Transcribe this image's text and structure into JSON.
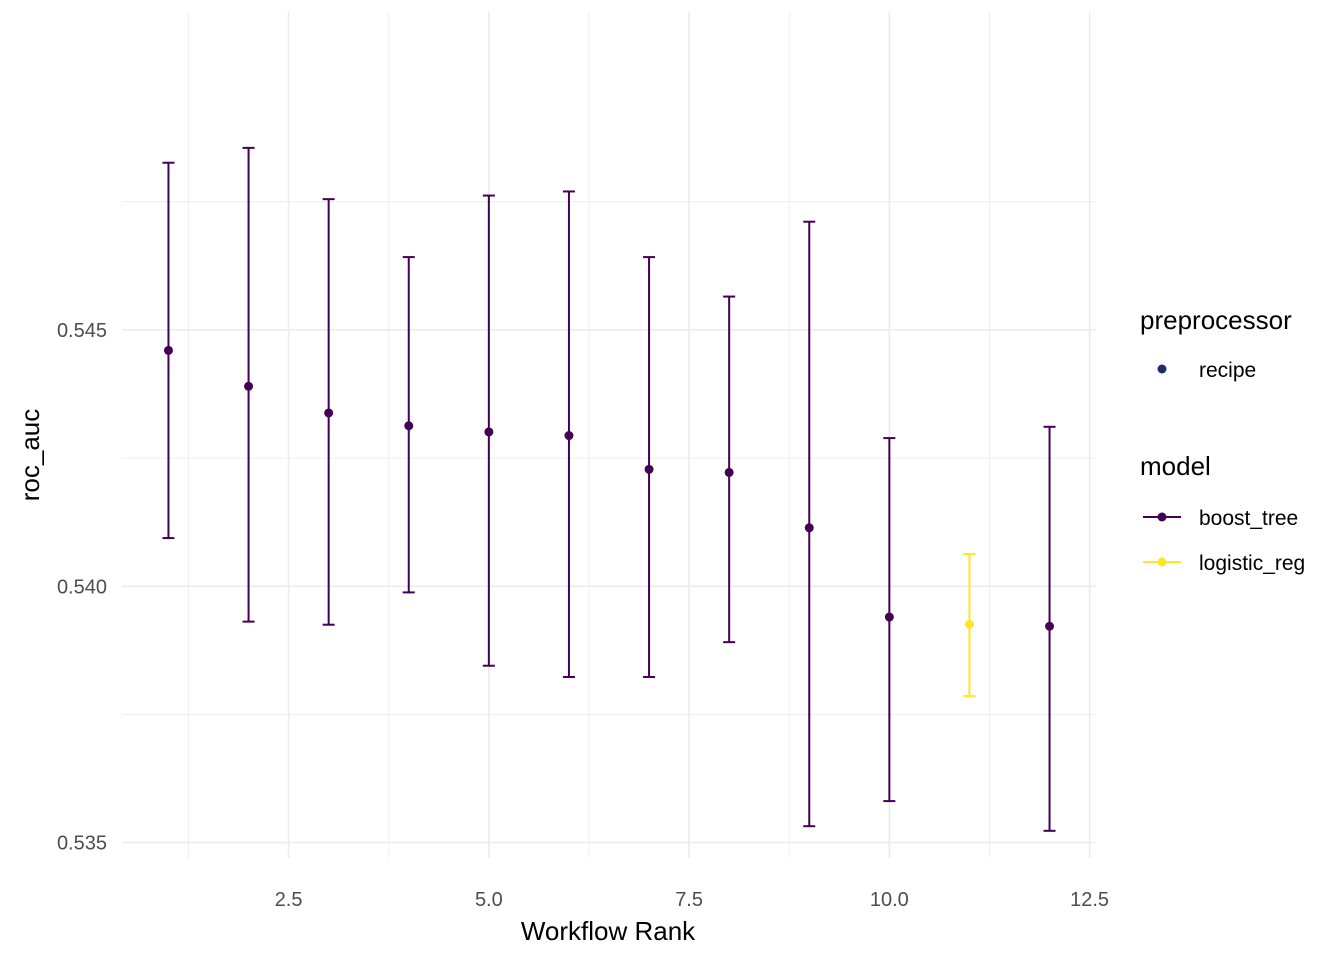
{
  "chart_data": {
    "type": "scatter",
    "xlabel": "Workflow Rank",
    "ylabel": "roc_auc",
    "xlim": [
      0.42,
      12.58
    ],
    "ylim": [
      0.5347,
      0.5512
    ],
    "x_ticks": [
      2.5,
      5.0,
      7.5,
      10.0,
      12.5
    ],
    "x_tick_labels": [
      "2.5",
      "5.0",
      "7.5",
      "10.0",
      "12.5"
    ],
    "y_ticks": [
      0.535,
      0.54,
      0.545
    ],
    "y_tick_labels": [
      "0.535",
      "0.540",
      "0.545"
    ],
    "grid": true,
    "legend_position": "right",
    "legends": [
      {
        "title": "preprocessor",
        "entries": [
          {
            "label": "recipe",
            "color": "#1f2d6e",
            "style": "point"
          }
        ]
      },
      {
        "title": "model",
        "entries": [
          {
            "label": "boost_tree",
            "color": "#440154",
            "style": "point-line"
          },
          {
            "label": "logistic_reg",
            "color": "#FDE725",
            "style": "point-line"
          }
        ]
      }
    ],
    "series": [
      {
        "name": "boost_tree",
        "color": "#440154",
        "points": [
          {
            "x": 1,
            "y": 0.5446,
            "ymin": 0.54094,
            "ymax": 0.54826
          },
          {
            "x": 2,
            "y": 0.5439,
            "ymin": 0.53931,
            "ymax": 0.54855
          },
          {
            "x": 3,
            "y": 0.54338,
            "ymin": 0.53925,
            "ymax": 0.54755
          },
          {
            "x": 4,
            "y": 0.54313,
            "ymin": 0.53988,
            "ymax": 0.54642
          },
          {
            "x": 5,
            "y": 0.54301,
            "ymin": 0.53845,
            "ymax": 0.54762
          },
          {
            "x": 6,
            "y": 0.54294,
            "ymin": 0.53823,
            "ymax": 0.5477
          },
          {
            "x": 7,
            "y": 0.54228,
            "ymin": 0.53823,
            "ymax": 0.54642
          },
          {
            "x": 8,
            "y": 0.54222,
            "ymin": 0.53891,
            "ymax": 0.54565
          },
          {
            "x": 9,
            "y": 0.54114,
            "ymin": 0.53532,
            "ymax": 0.54711
          },
          {
            "x": 10,
            "y": 0.5394,
            "ymin": 0.53581,
            "ymax": 0.54289
          },
          {
            "x": 12,
            "y": 0.53922,
            "ymin": 0.53523,
            "ymax": 0.54311
          }
        ]
      },
      {
        "name": "logistic_reg",
        "color": "#FDE725",
        "points": [
          {
            "x": 11,
            "y": 0.53926,
            "ymin": 0.53786,
            "ymax": 0.54063
          }
        ]
      }
    ]
  }
}
